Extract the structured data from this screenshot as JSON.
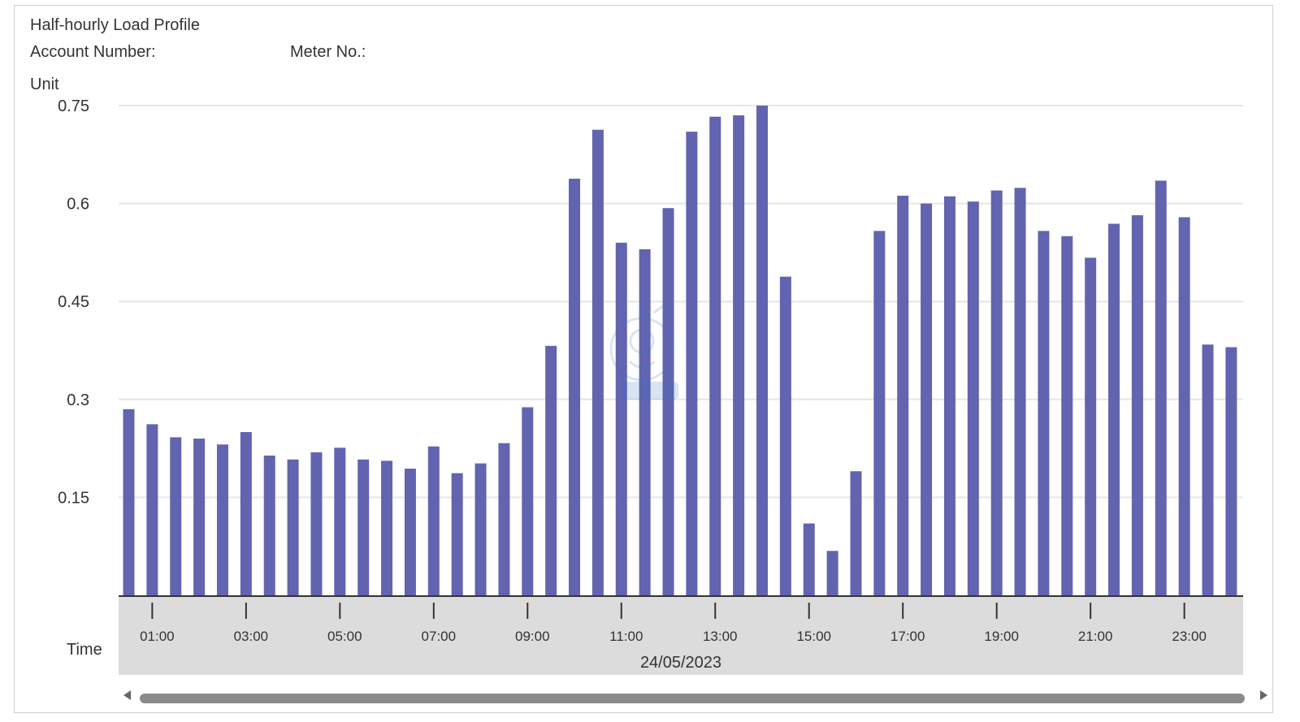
{
  "header": {
    "title": "Half-hourly Load Profile",
    "account_label": "Account Number:",
    "meter_label": "Meter No.:",
    "unit_label": "Unit",
    "time_label": "Time"
  },
  "chart_data": {
    "type": "bar",
    "title": "Half-hourly Load Profile",
    "ylabel": "Unit",
    "xlabel": "Time",
    "date": "24/05/2023",
    "ylim": [
      0,
      0.75
    ],
    "yticks": [
      0.15,
      0.3,
      0.45,
      0.6,
      0.75
    ],
    "ytick_labels": [
      "0.15",
      "0.3",
      "0.45",
      "0.6",
      "0.75"
    ],
    "xtick_labels": [
      "01:00",
      "03:00",
      "05:00",
      "07:00",
      "09:00",
      "11:00",
      "13:00",
      "15:00",
      "17:00",
      "19:00",
      "21:00",
      "23:00"
    ],
    "grid": true,
    "color": "#6264b0",
    "values": [
      0.285,
      0.262,
      0.242,
      0.24,
      0.231,
      0.25,
      0.214,
      0.208,
      0.219,
      0.226,
      0.208,
      0.206,
      0.194,
      0.228,
      0.187,
      0.202,
      0.233,
      0.288,
      0.382,
      0.638,
      0.713,
      0.54,
      0.53,
      0.593,
      0.71,
      0.733,
      0.735,
      0.75,
      0.488,
      0.11,
      0.068,
      0.19,
      0.558,
      0.612,
      0.6,
      0.611,
      0.603,
      0.62,
      0.624,
      0.558,
      0.55,
      0.517,
      0.569,
      0.582,
      0.635,
      0.579,
      0.384,
      0.38
    ]
  },
  "scrollbar": {
    "left_icon": "arrow-left-icon",
    "right_icon": "arrow-right-icon"
  }
}
